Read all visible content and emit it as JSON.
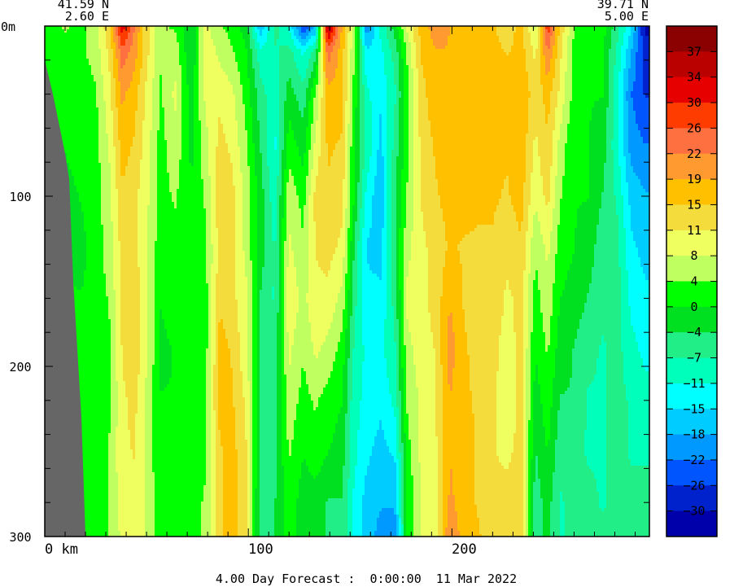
{
  "chart_data": {
    "type": "heatmap",
    "title": "",
    "xlabel": "",
    "ylabel": "",
    "corners": {
      "left": {
        "lat": "41.59 N",
        "lon": "2.60 E"
      },
      "right": {
        "lat": "39.71 N",
        "lon": "5.00 E"
      }
    },
    "x_unit_label": "0 km",
    "x_ticks": [
      0,
      100,
      200
    ],
    "x_tick_labels": [
      "0 km",
      "100",
      "200"
    ],
    "xlim": [
      0,
      297
    ],
    "y_ticks": [
      0,
      100,
      200,
      300
    ],
    "y_tick_labels": [
      "0m",
      "100",
      "200",
      "300"
    ],
    "ylim": [
      0,
      300
    ],
    "y_inverted": true,
    "colorbar": {
      "labels": [
        "37",
        "34",
        "30",
        "26",
        "22",
        "19",
        "15",
        "11",
        "8",
        "4",
        "0",
        "−4",
        "−7",
        "−11",
        "−15",
        "−18",
        "−22",
        "−26",
        "−30"
      ],
      "colors": [
        "#8b0000",
        "#bb0000",
        "#e60000",
        "#ff3c00",
        "#ff7040",
        "#ff9a30",
        "#ffc000",
        "#f3dc3c",
        "#f0ff60",
        "#c0ff60",
        "#00ff00",
        "#00e020",
        "#22ee88",
        "#00ffbb",
        "#00ffff",
        "#00ccff",
        "#0099ff",
        "#0055ff",
        "#0022cc",
        "#0000aa"
      ],
      "vmin": -33,
      "vmax": 40
    },
    "seabed_color": "#666666",
    "columns": [
      {
        "x": 2,
        "v": [
          2,
          1,
          1,
          0,
          0,
          0,
          0,
          0,
          0,
          0,
          0,
          0
        ]
      },
      {
        "x": 10,
        "v": [
          4,
          2,
          1,
          0,
          -1,
          0,
          0,
          0,
          0,
          0,
          0,
          0
        ]
      },
      {
        "x": 18,
        "v": [
          2,
          3,
          1,
          1,
          0,
          -1,
          0,
          0,
          0,
          0,
          0,
          0
        ]
      },
      {
        "x": 25,
        "v": [
          6,
          5,
          3,
          2,
          2,
          1,
          1,
          0,
          0,
          0,
          0,
          0
        ]
      },
      {
        "x": 32,
        "v": [
          14,
          12,
          10,
          8,
          6,
          6,
          4,
          3,
          3,
          4,
          4,
          4
        ]
      },
      {
        "x": 38,
        "v": [
          32,
          24,
          19,
          16,
          14,
          12,
          12,
          11,
          10,
          10,
          9,
          8
        ]
      },
      {
        "x": 44,
        "v": [
          22,
          20,
          16,
          14,
          12,
          12,
          13,
          14,
          12,
          11,
          10,
          10
        ]
      },
      {
        "x": 50,
        "v": [
          12,
          12,
          10,
          9,
          8,
          8,
          8,
          8,
          6,
          6,
          7,
          7
        ]
      },
      {
        "x": 57,
        "v": [
          4,
          4,
          3,
          2,
          2,
          1,
          0,
          -1,
          0,
          0,
          1,
          1
        ]
      },
      {
        "x": 64,
        "v": [
          3,
          6,
          8,
          6,
          4,
          2,
          2,
          0,
          0,
          1,
          2,
          2
        ]
      },
      {
        "x": 72,
        "v": [
          -3,
          -4,
          -2,
          -1,
          0,
          0,
          1,
          1,
          0,
          0,
          2,
          2
        ]
      },
      {
        "x": 79,
        "v": [
          8,
          10,
          8,
          6,
          4,
          3,
          2,
          2,
          3,
          3,
          4,
          4
        ]
      },
      {
        "x": 86,
        "v": [
          4,
          6,
          10,
          12,
          14,
          12,
          14,
          16,
          16,
          14,
          14,
          14
        ]
      },
      {
        "x": 92,
        "v": [
          2,
          4,
          8,
          10,
          12,
          12,
          12,
          14,
          15,
          16,
          16,
          16
        ]
      },
      {
        "x": 99,
        "v": [
          -2,
          0,
          2,
          4,
          6,
          6,
          8,
          8,
          10,
          11,
          11,
          11
        ]
      },
      {
        "x": 106,
        "v": [
          -18,
          -10,
          -6,
          -4,
          -2,
          -2,
          -4,
          -4,
          -4,
          -4,
          -6,
          -6
        ]
      },
      {
        "x": 113,
        "v": [
          -6,
          -8,
          -10,
          -12,
          -10,
          -8,
          -8,
          -6,
          -6,
          -5,
          -4,
          -4
        ]
      },
      {
        "x": 120,
        "v": [
          -12,
          -6,
          -2,
          2,
          6,
          8,
          10,
          8,
          6,
          4,
          2,
          2
        ]
      },
      {
        "x": 127,
        "v": [
          -26,
          -12,
          -6,
          -2,
          2,
          4,
          6,
          4,
          2,
          0,
          -2,
          -2
        ]
      },
      {
        "x": 133,
        "v": [
          -18,
          -6,
          4,
          8,
          12,
          11,
          10,
          8,
          4,
          2,
          -2,
          -2
        ]
      },
      {
        "x": 139,
        "v": [
          36,
          24,
          17,
          15,
          14,
          12,
          10,
          6,
          2,
          0,
          -4,
          -4
        ]
      },
      {
        "x": 146,
        "v": [
          18,
          16,
          16,
          14,
          12,
          10,
          6,
          2,
          0,
          -2,
          -4,
          -4
        ]
      },
      {
        "x": 152,
        "v": [
          6,
          4,
          2,
          0,
          0,
          -4,
          -6,
          -8,
          -10,
          -10,
          -12,
          -12
        ]
      },
      {
        "x": 158,
        "v": [
          -22,
          -14,
          -10,
          -8,
          -12,
          -15,
          -14,
          -12,
          -12,
          -14,
          -16,
          -16
        ]
      },
      {
        "x": 165,
        "v": [
          -10,
          -12,
          -14,
          -16,
          -18,
          -16,
          -14,
          -12,
          -14,
          -16,
          -18,
          -20
        ]
      },
      {
        "x": 172,
        "v": [
          -2,
          -6,
          -8,
          -6,
          -4,
          -4,
          -6,
          -8,
          -10,
          -14,
          -18,
          -20
        ]
      },
      {
        "x": 178,
        "v": [
          8,
          4,
          2,
          2,
          4,
          6,
          8,
          6,
          4,
          2,
          0,
          0
        ]
      },
      {
        "x": 185,
        "v": [
          16,
          15,
          13,
          12,
          11,
          10,
          10,
          9,
          8,
          8,
          8,
          8
        ]
      },
      {
        "x": 192,
        "v": [
          20,
          18,
          17,
          15,
          14,
          12,
          12,
          11,
          11,
          10,
          9,
          8
        ]
      },
      {
        "x": 199,
        "v": [
          18,
          18,
          17,
          16,
          16,
          15,
          18,
          20,
          18,
          18,
          19,
          22
        ]
      },
      {
        "x": 206,
        "v": [
          16,
          17,
          18,
          17,
          16,
          14,
          14,
          15,
          15,
          16,
          16,
          16
        ]
      },
      {
        "x": 213,
        "v": [
          16,
          15,
          16,
          16,
          15,
          14,
          13,
          13,
          14,
          14,
          14,
          15
        ]
      },
      {
        "x": 220,
        "v": [
          15,
          16,
          17,
          16,
          15,
          14,
          14,
          12,
          12,
          11,
          12,
          12
        ]
      },
      {
        "x": 227,
        "v": [
          12,
          14,
          18,
          15,
          14,
          12,
          10,
          9,
          8,
          10,
          12,
          12
        ]
      },
      {
        "x": 234,
        "v": [
          16,
          16,
          18,
          17,
          16,
          14,
          12,
          12,
          12,
          12,
          13,
          14
        ]
      },
      {
        "x": 241,
        "v": [
          6,
          10,
          12,
          10,
          8,
          4,
          2,
          0,
          -2,
          -4,
          -6,
          -8
        ]
      },
      {
        "x": 247,
        "v": [
          28,
          22,
          16,
          14,
          12,
          8,
          6,
          4,
          2,
          0,
          -2,
          -2
        ]
      },
      {
        "x": 253,
        "v": [
          14,
          12,
          10,
          6,
          4,
          2,
          0,
          -2,
          -4,
          -6,
          -8,
          -8
        ]
      },
      {
        "x": 260,
        "v": [
          4,
          2,
          2,
          0,
          0,
          0,
          -2,
          -4,
          -4,
          -6,
          -6,
          -6
        ]
      },
      {
        "x": 267,
        "v": [
          0,
          2,
          0,
          0,
          0,
          -2,
          -4,
          -6,
          -8,
          -8,
          -6,
          -6
        ]
      },
      {
        "x": 274,
        "v": [
          2,
          0,
          0,
          -2,
          -4,
          -6,
          -6,
          -8,
          -8,
          -8,
          -8,
          -6
        ]
      },
      {
        "x": 281,
        "v": [
          -6,
          -8,
          -10,
          -10,
          -8,
          -6,
          -6,
          -6,
          -6,
          -6,
          -6,
          -6
        ]
      },
      {
        "x": 288,
        "v": [
          -14,
          -18,
          -22,
          -20,
          -16,
          -14,
          -12,
          -10,
          -8,
          -8,
          -6,
          -6
        ]
      },
      {
        "x": 295,
        "v": [
          -30,
          -28,
          -26,
          -22,
          -18,
          -16,
          -14,
          -12,
          -10,
          -8,
          -6,
          -6
        ]
      }
    ],
    "column_depths": [
      0,
      15,
      40,
      70,
      100,
      130,
      160,
      190,
      220,
      250,
      280,
      300
    ],
    "seabed_profile": [
      {
        "x": 0,
        "depth": 20
      },
      {
        "x": 4,
        "depth": 40
      },
      {
        "x": 10,
        "depth": 75
      },
      {
        "x": 12,
        "depth": 90
      },
      {
        "x": 14,
        "depth": 150
      },
      {
        "x": 18,
        "depth": 230
      },
      {
        "x": 20,
        "depth": 300
      }
    ]
  },
  "footer": {
    "forecast_text": "4.00 Day Forecast :  0:00:00  11 Mar 2022"
  }
}
